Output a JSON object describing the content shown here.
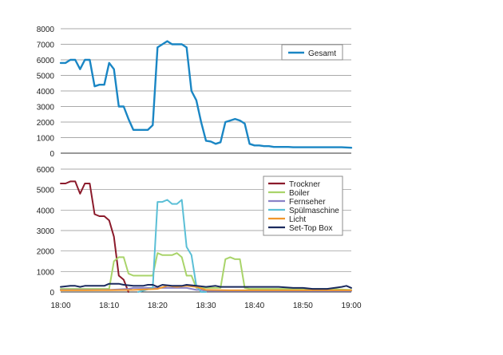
{
  "colors": {
    "Gesamt": "#1a86c4",
    "Trockner": "#8b1a2b",
    "Boiler": "#a9d46a",
    "Fernseher": "#8a82c7",
    "Spülmaschine": "#5bbfd6",
    "Licht": "#f0962c",
    "Set-Top Box": "#1b2a5e",
    "grid": "#8c8c8c",
    "axis": "#333333"
  },
  "chart_data": [
    {
      "type": "line",
      "ylim": [
        0,
        8000
      ],
      "yticks": [
        "0",
        "1000",
        "2000",
        "3000",
        "4000",
        "5000",
        "6000",
        "7000",
        "8000"
      ],
      "ytick_values": [
        0,
        1000,
        2000,
        3000,
        4000,
        5000,
        6000,
        7000,
        8000
      ],
      "xlim": [
        0,
        60
      ],
      "grid": true,
      "legend": "top-right",
      "series": [
        {
          "name": "Gesamt",
          "x": [
            0,
            1,
            2,
            3,
            4,
            5,
            6,
            7,
            8,
            9,
            10,
            11,
            12,
            13,
            14,
            15,
            16,
            17,
            18,
            19,
            20,
            21,
            22,
            23,
            24,
            25,
            26,
            27,
            28,
            29,
            30,
            31,
            32,
            33,
            34,
            35,
            36,
            37,
            38,
            39,
            40,
            41,
            42,
            43,
            44,
            45,
            46,
            47,
            48,
            50,
            52,
            54,
            56,
            58,
            60
          ],
          "values": [
            5800,
            5800,
            6000,
            6000,
            5400,
            6000,
            6000,
            4300,
            4400,
            4400,
            5800,
            5400,
            3000,
            3000,
            2200,
            1500,
            1500,
            1500,
            1500,
            1800,
            6800,
            7000,
            7200,
            7000,
            7000,
            7000,
            6800,
            4000,
            3400,
            2000,
            800,
            750,
            600,
            700,
            2000,
            2100,
            2200,
            2100,
            1900,
            600,
            500,
            500,
            450,
            450,
            400,
            400,
            400,
            400,
            380,
            380,
            380,
            380,
            380,
            380,
            350
          ]
        }
      ]
    },
    {
      "type": "line",
      "ylim": [
        0,
        6000
      ],
      "yticks": [
        "0",
        "1000",
        "2000",
        "3000",
        "4000",
        "5000",
        "6000"
      ],
      "ytick_values": [
        0,
        1000,
        2000,
        3000,
        4000,
        5000,
        6000
      ],
      "categories": [
        "18:00",
        "18:10",
        "18:20",
        "18:30",
        "18:40",
        "18:50",
        "19:00"
      ],
      "xlim": [
        0,
        60
      ],
      "grid": true,
      "legend": "top-right",
      "series": [
        {
          "name": "Trockner",
          "x": [
            0,
            1,
            2,
            3,
            4,
            5,
            6,
            7,
            8,
            9,
            10,
            11,
            12,
            13,
            14
          ],
          "values": [
            5300,
            5300,
            5400,
            5400,
            4800,
            5300,
            5300,
            3800,
            3700,
            3700,
            3500,
            2700,
            800,
            600,
            0
          ]
        },
        {
          "name": "Boiler",
          "x": [
            0,
            10,
            11,
            12,
            13,
            14,
            15,
            16,
            17,
            18,
            19,
            20,
            21,
            22,
            23,
            24,
            25,
            26,
            27,
            28,
            29,
            30,
            31,
            32,
            33,
            34,
            35,
            36,
            37,
            38,
            39,
            40,
            45,
            50,
            55,
            60
          ],
          "values": [
            150,
            150,
            1500,
            1700,
            1700,
            900,
            800,
            800,
            800,
            800,
            800,
            1900,
            1800,
            1800,
            1800,
            1900,
            1700,
            800,
            800,
            200,
            200,
            200,
            200,
            200,
            200,
            1600,
            1700,
            1600,
            1600,
            200,
            150,
            150,
            150,
            150,
            150,
            100
          ]
        },
        {
          "name": "Fernseher",
          "x": [
            0,
            5,
            10,
            14,
            15,
            20,
            24,
            26,
            28,
            29,
            30,
            35,
            40,
            45,
            50,
            55,
            60
          ],
          "values": [
            100,
            100,
            100,
            150,
            200,
            200,
            200,
            200,
            100,
            100,
            50,
            50,
            50,
            50,
            50,
            50,
            50
          ]
        },
        {
          "name": "Spülmaschine",
          "x": [
            16,
            19,
            20,
            21,
            22,
            23,
            24,
            25,
            26,
            27,
            28,
            29,
            30
          ],
          "values": [
            0,
            200,
            4400,
            4400,
            4500,
            4300,
            4300,
            4500,
            2200,
            1800,
            300,
            0,
            0
          ]
        },
        {
          "name": "Licht",
          "x": [
            0,
            5,
            10,
            15,
            20,
            22,
            24,
            26,
            28,
            30,
            35,
            40,
            45,
            50,
            55,
            60
          ],
          "values": [
            80,
            80,
            90,
            100,
            150,
            300,
            250,
            300,
            250,
            100,
            80,
            80,
            80,
            80,
            80,
            80
          ]
        },
        {
          "name": "Set-Top Box",
          "x": [
            0,
            2,
            3,
            4,
            5,
            8,
            9,
            10,
            12,
            13,
            15,
            17,
            18,
            19,
            20,
            21,
            23,
            25,
            26,
            28,
            30,
            32,
            33,
            35,
            38,
            40,
            42,
            45,
            48,
            50,
            52,
            55,
            58,
            59,
            60
          ],
          "values": [
            250,
            300,
            300,
            250,
            300,
            300,
            300,
            400,
            400,
            350,
            300,
            300,
            350,
            350,
            250,
            350,
            300,
            300,
            350,
            300,
            250,
            300,
            250,
            250,
            250,
            250,
            250,
            250,
            200,
            200,
            150,
            150,
            250,
            300,
            200
          ]
        }
      ]
    }
  ]
}
